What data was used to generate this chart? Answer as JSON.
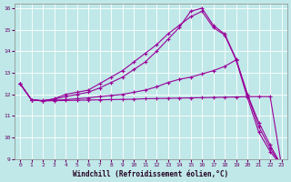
{
  "bg_color": "#c0e8e8",
  "line_color": "#990099",
  "grid_color": "#ffffff",
  "xlabel": "Windchill (Refroidissement éolien,°C)",
  "xlim": [
    -0.5,
    23.5
  ],
  "ylim": [
    9,
    16.2
  ],
  "xticks": [
    0,
    1,
    2,
    3,
    4,
    5,
    6,
    7,
    8,
    9,
    10,
    11,
    12,
    13,
    14,
    15,
    16,
    17,
    18,
    19,
    20,
    21,
    22,
    23
  ],
  "yticks": [
    9,
    10,
    11,
    12,
    13,
    14,
    15,
    16
  ],
  "line1_x": [
    0,
    1,
    2,
    3,
    4,
    5,
    6,
    7,
    8,
    9,
    10,
    11,
    12,
    13,
    14,
    15,
    16,
    17,
    18,
    19,
    20,
    21,
    22,
    23
  ],
  "line1_y": [
    12.5,
    11.75,
    11.7,
    11.8,
    12.0,
    12.1,
    12.2,
    12.5,
    12.8,
    13.1,
    13.5,
    13.9,
    14.3,
    14.8,
    15.2,
    15.6,
    15.85,
    15.1,
    14.75,
    13.6,
    12.0,
    10.5,
    9.5,
    8.7
  ],
  "line2_x": [
    0,
    1,
    2,
    3,
    4,
    5,
    6,
    7,
    8,
    9,
    10,
    11,
    12,
    13,
    14,
    15,
    16,
    17,
    18,
    19,
    20,
    21,
    22,
    23
  ],
  "line2_y": [
    12.5,
    11.75,
    11.72,
    11.78,
    11.9,
    12.0,
    12.1,
    12.3,
    12.55,
    12.8,
    13.15,
    13.5,
    14.0,
    14.55,
    15.1,
    15.85,
    16.0,
    15.2,
    14.8,
    13.65,
    12.0,
    10.7,
    9.65,
    8.7
  ],
  "line3_x": [
    0,
    1,
    2,
    3,
    4,
    5,
    6,
    7,
    8,
    9,
    10,
    11,
    12,
    13,
    14,
    15,
    16,
    17,
    18,
    19,
    20,
    21,
    22,
    23
  ],
  "line3_y": [
    12.5,
    11.75,
    11.7,
    11.73,
    11.76,
    11.8,
    11.84,
    11.9,
    11.95,
    12.0,
    12.1,
    12.2,
    12.35,
    12.55,
    12.7,
    12.8,
    12.95,
    13.1,
    13.3,
    13.6,
    11.85,
    10.25,
    9.35,
    8.7
  ],
  "line4_x": [
    0,
    1,
    2,
    3,
    4,
    5,
    6,
    7,
    8,
    9,
    10,
    11,
    12,
    13,
    14,
    15,
    16,
    17,
    18,
    19,
    20,
    21,
    22,
    23
  ],
  "line4_y": [
    12.5,
    11.75,
    11.7,
    11.71,
    11.72,
    11.73,
    11.74,
    11.75,
    11.76,
    11.77,
    11.78,
    11.8,
    11.81,
    11.82,
    11.83,
    11.84,
    11.85,
    11.86,
    11.87,
    11.88,
    11.9,
    11.9,
    11.9,
    8.7
  ]
}
